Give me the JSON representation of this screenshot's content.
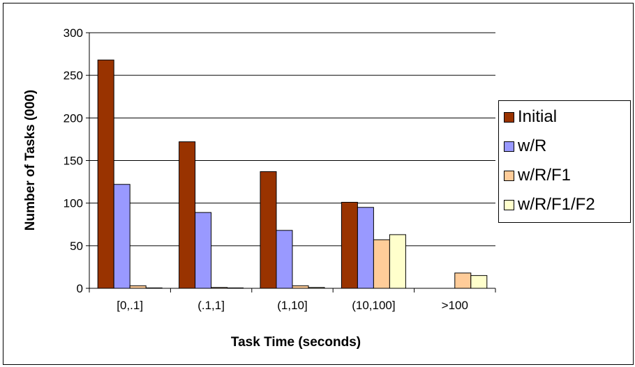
{
  "chart_data": {
    "type": "bar",
    "title": "",
    "xlabel": "Task Time (seconds)",
    "ylabel": "Number of Tasks (000)",
    "categories": [
      "[0,.1]",
      "(.1,1]",
      "(1,10]",
      "(10,100]",
      ">100"
    ],
    "ylim": [
      0,
      300
    ],
    "yticks": [
      0,
      50,
      100,
      150,
      200,
      250,
      300
    ],
    "grid": true,
    "legend_position": "right",
    "series": [
      {
        "name": "Initial",
        "color": "#993300",
        "values": [
          268,
          172,
          137,
          101,
          0
        ]
      },
      {
        "name": "w/R",
        "color": "#9999FF",
        "values": [
          122,
          89,
          68,
          95,
          0
        ]
      },
      {
        "name": "w/R/F1",
        "color": "#FFCC99",
        "values": [
          3,
          1,
          3,
          57,
          18
        ]
      },
      {
        "name": "w/R/F1/F2",
        "color": "#FFFFCC",
        "values": [
          0.5,
          0.5,
          1,
          63,
          15
        ]
      }
    ]
  }
}
